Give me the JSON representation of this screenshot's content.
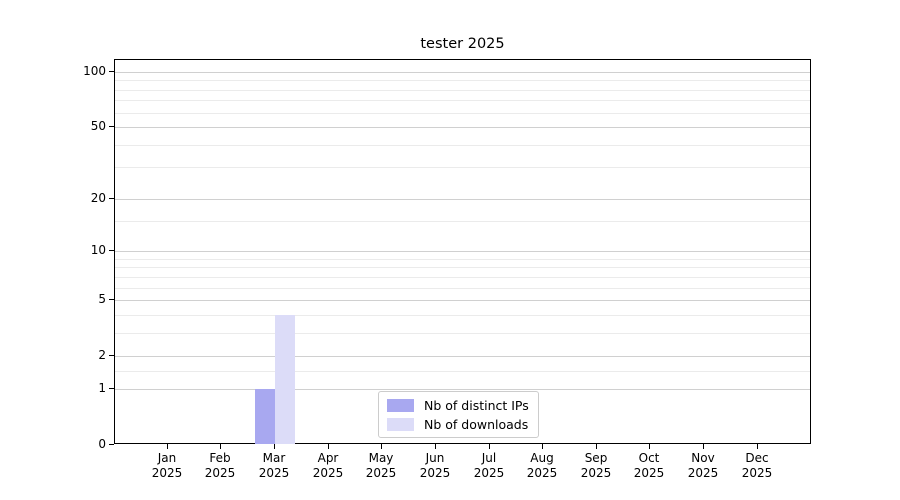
{
  "figure": {
    "background": "#ffffff"
  },
  "chart_data": {
    "type": "bar",
    "title": "tester 2025",
    "categories": [
      "Jan",
      "Feb",
      "Mar",
      "Apr",
      "May",
      "Jun",
      "Jul",
      "Aug",
      "Sep",
      "Oct",
      "Nov",
      "Dec"
    ],
    "year_label": "2025",
    "series": [
      {
        "name": "Nb of distinct IPs",
        "color": "#a8a8f0",
        "values": [
          0,
          0,
          1,
          0,
          0,
          0,
          0,
          0,
          0,
          0,
          0,
          0
        ]
      },
      {
        "name": "Nb of downloads",
        "color": "#dcdcf8",
        "values": [
          0,
          0,
          4,
          0,
          0,
          0,
          0,
          0,
          0,
          0,
          0,
          0
        ]
      }
    ],
    "xlabel": "",
    "ylabel": "",
    "y_axis": {
      "scale": "log1p",
      "tick_values": [
        100,
        50,
        20,
        10,
        5,
        2,
        1,
        0
      ],
      "minor_gridline_values": [
        1.5,
        3,
        4,
        6,
        7,
        8,
        9,
        15,
        30,
        40,
        60,
        70,
        80,
        90
      ],
      "ylim": [
        0,
        116
      ]
    },
    "grid": {
      "orientation": "horizontal",
      "major_color": "#d0d0d0",
      "minor_color": "#ebebeb"
    },
    "legend_position": "lower-center"
  },
  "colors": {
    "spine": "#000000",
    "text": "#000000",
    "legend_border": "#cccccc"
  }
}
